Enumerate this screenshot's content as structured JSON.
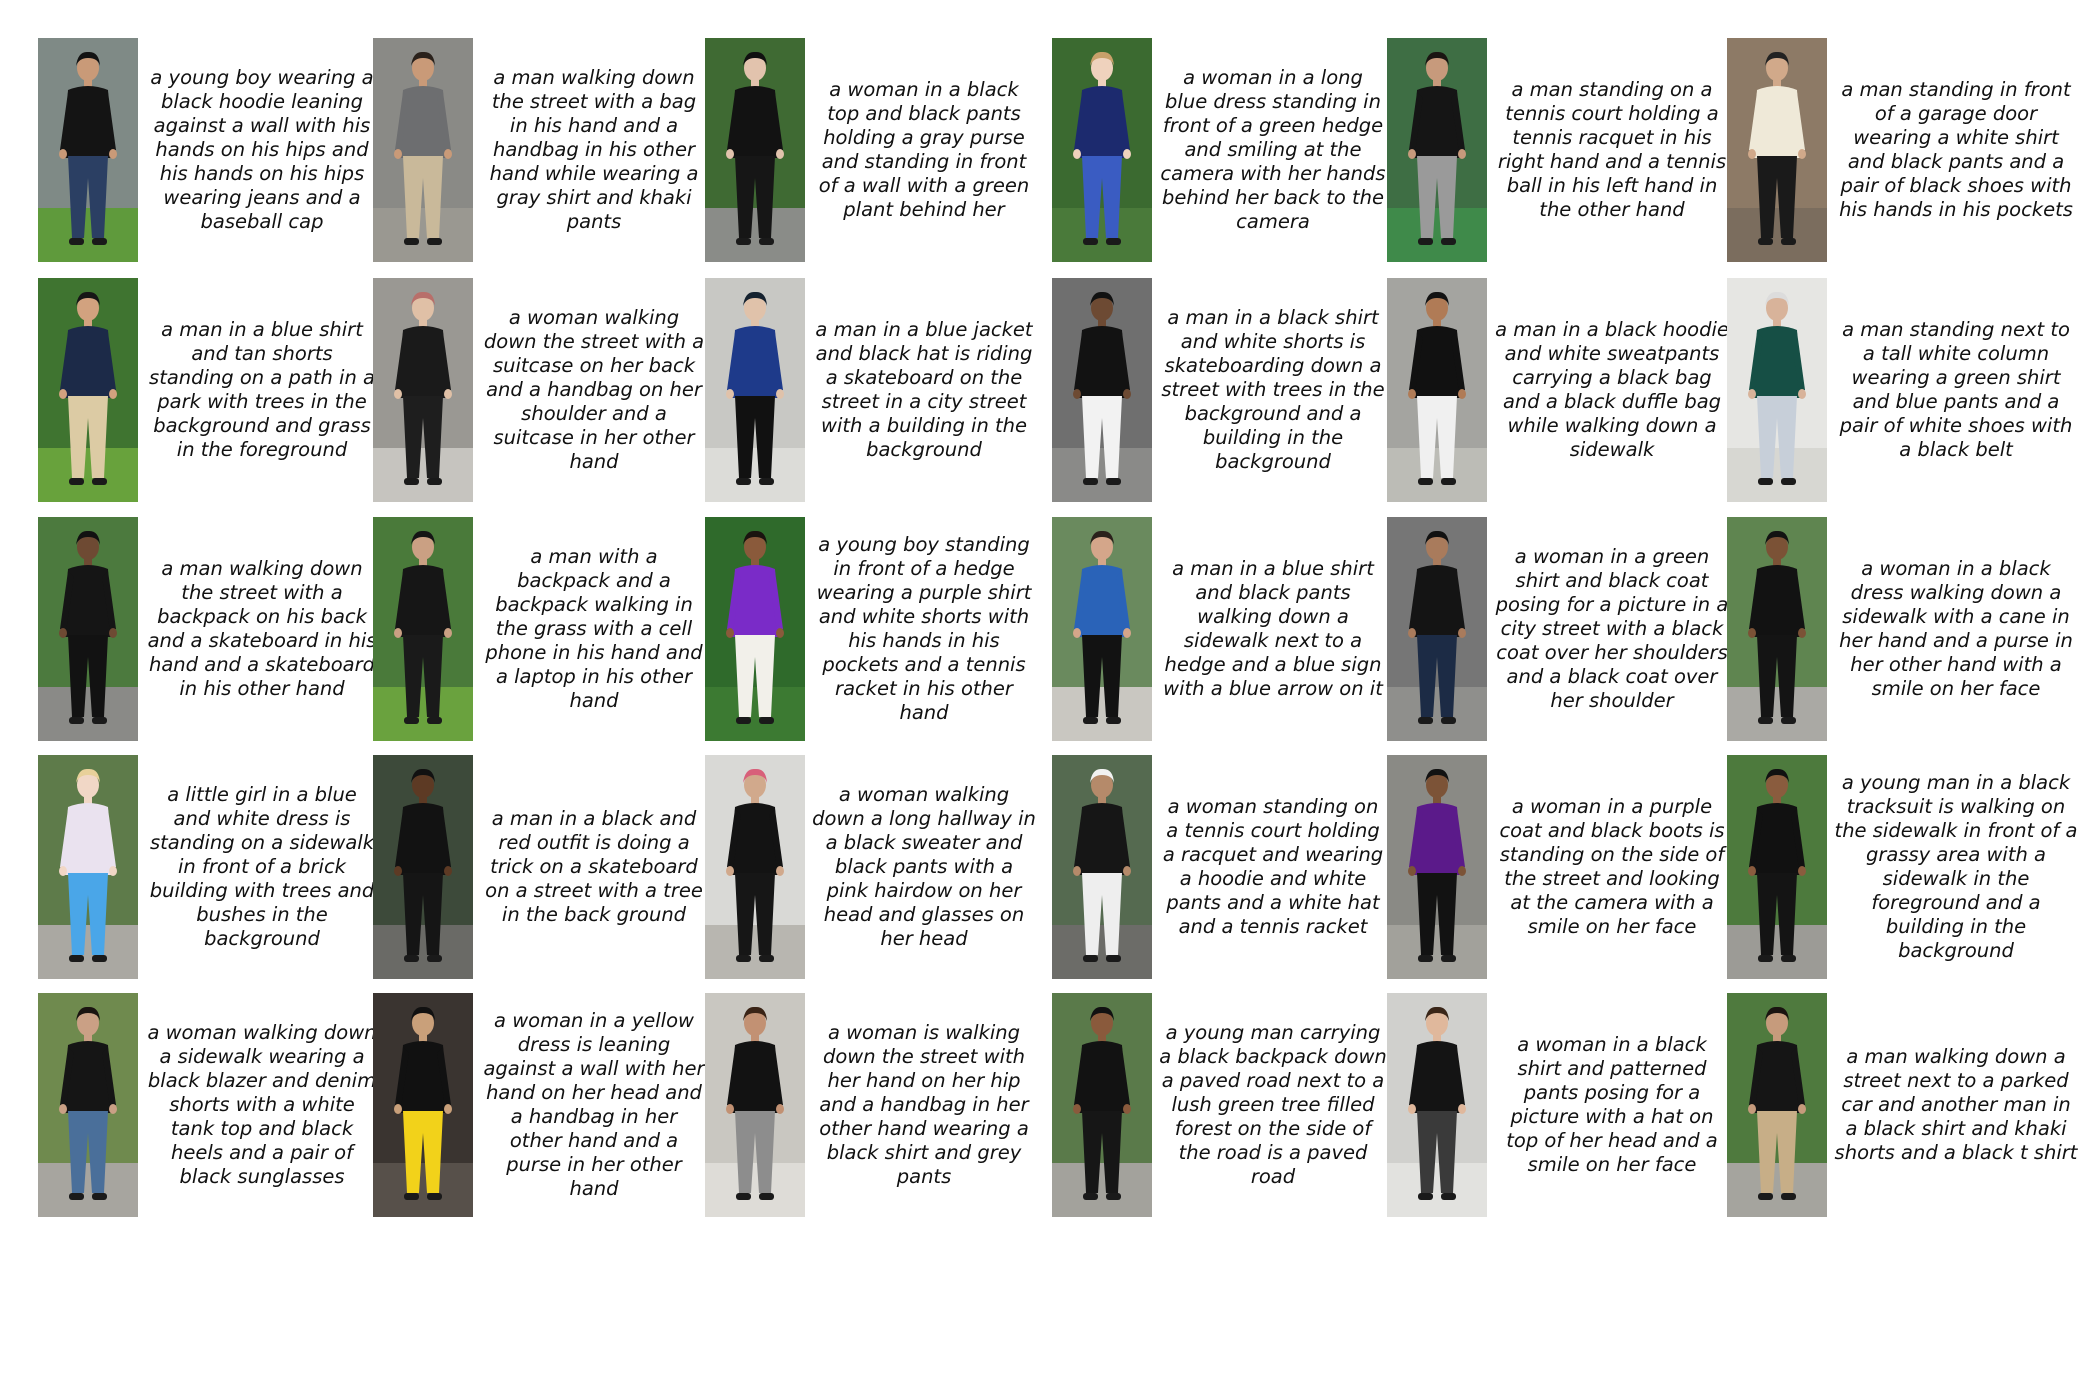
{
  "items": [
    {
      "caption": "a young boy wearing a black hoodie leaning against a wall with his hands on his hips and his hands on his hips wearing jeans and a baseball cap",
      "bg": "#7f8a86",
      "ground": "#5f9a3c",
      "top": "#141414",
      "bottom": "#2b3f63",
      "skin": "#c99a78",
      "hair": "#121212"
    },
    {
      "caption": "a man walking down the street with a bag in his hand and a handbag in his other hand while wearing a gray shirt and khaki pants",
      "bg": "#8a8a86",
      "ground": "#9a9891",
      "top": "#6d6e70",
      "bottom": "#c9b99a",
      "skin": "#c99a78",
      "hair": "#2a211b"
    },
    {
      "caption": "a woman in a black top and black pants holding a gray purse and standing in front of a wall with a green plant behind her",
      "bg": "#3f6a33",
      "ground": "#8a8c88",
      "top": "#121212",
      "bottom": "#161616",
      "skin": "#e2c3ad",
      "hair": "#101010"
    },
    {
      "caption": "a woman in a long blue dress standing in front of a green hedge and smiling at the camera with her hands behind her back to the camera",
      "bg": "#3b6a30",
      "ground": "#4a7a3a",
      "top": "#1c2a6e",
      "bottom": "#3a5cc2",
      "skin": "#efd2bd",
      "hair": "#c8a06a"
    },
    {
      "caption": "a man standing on a tennis court holding a tennis racquet in his right hand and a tennis ball in his left hand in the other hand",
      "bg": "#3e6e44",
      "ground": "#3f8a4a",
      "top": "#151515",
      "bottom": "#9a9a9a",
      "skin": "#c79a7c",
      "hair": "#1a1512"
    },
    {
      "caption": "a man standing in front of a garage door wearing a white shirt and black pants and a pair of black shoes with his hands in his pockets",
      "bg": "#8d7a66",
      "ground": "#7b6d5e",
      "top": "#efe9d8",
      "bottom": "#1a1a1a",
      "skin": "#d1a98a",
      "hair": "#222222"
    },
    {
      "caption": "a man in a blue shirt and tan shorts standing on a path in a park with trees in the background and grass in the foreground",
      "bg": "#3f7430",
      "ground": "#68a23c",
      "top": "#1c2a48",
      "bottom": "#dccba4",
      "skin": "#d2a27f",
      "hair": "#161616"
    },
    {
      "caption": "a woman walking down the street with a suitcase on her back and a handbag on her shoulder and a suitcase in her other hand",
      "bg": "#9a9893",
      "ground": "#c6c4bf",
      "top": "#1a1a1a",
      "bottom": "#1e1e1e",
      "skin": "#e0c0a6",
      "hair": "#b86f6a"
    },
    {
      "caption": "a man in a blue jacket and black hat is riding a skateboard on the street in a city street with a building in the background",
      "bg": "#c8c8c4",
      "ground": "#dcdcd8",
      "top": "#1e3a8a",
      "bottom": "#111111",
      "skin": "#e0c2aa",
      "hair": "#15222f"
    },
    {
      "caption": "a man in a black shirt and white shorts is skateboarding down a street with trees in the background and a building in the background",
      "bg": "#6f6f6f",
      "ground": "#8a8a88",
      "top": "#121212",
      "bottom": "#f2f2f2",
      "skin": "#6d4a33",
      "hair": "#111111"
    },
    {
      "caption": "a man in a black hoodie and white sweatpants carrying a black bag and a black duffle bag while walking down a sidewalk",
      "bg": "#a4a4a0",
      "ground": "#bcbcb6",
      "top": "#111111",
      "bottom": "#f0f0f0",
      "skin": "#b07b56",
      "hair": "#121212"
    },
    {
      "caption": "a man standing next to a tall white column wearing a green shirt and blue pants and a pair of white shoes with a black belt",
      "bg": "#e6e6e3",
      "ground": "#d7d7d2",
      "top": "#164f45",
      "bottom": "#c7cfd9",
      "skin": "#d8b39a",
      "hair": "#dcdcdc"
    },
    {
      "caption": "a man walking down the street with a backpack on his back and a skateboard in his hand and a skateboard in his other hand",
      "bg": "#4c7a3e",
      "ground": "#8a8a87",
      "top": "#151515",
      "bottom": "#121212",
      "skin": "#6e4a33",
      "hair": "#111111"
    },
    {
      "caption": "a man with a backpack and a backpack walking in the grass with a cell phone in his hand and a laptop in his other hand",
      "bg": "#4a7a3a",
      "ground": "#6aa23e",
      "top": "#161616",
      "bottom": "#1a1a1a",
      "skin": "#caa083",
      "hair": "#151515"
    },
    {
      "caption": "a young boy standing in front of a hedge wearing a purple shirt and white shorts with his hands in his pockets and a tennis racket in his other hand",
      "bg": "#2f6a2b",
      "ground": "#3c7a32",
      "top": "#7a2bc8",
      "bottom": "#f2f0ea",
      "skin": "#8a5a3b",
      "hair": "#1a130f"
    },
    {
      "caption": "a man in a blue shirt and black pants walking down a sidewalk next to a hedge and a blue sign with a blue arrow on it",
      "bg": "#6a8a5e",
      "ground": "#c9c7c1",
      "top": "#2a63b8",
      "bottom": "#121212",
      "skin": "#d4a68a",
      "hair": "#2a211b"
    },
    {
      "caption": "a woman in a green shirt and black coat posing for a picture in a city street with a black coat over her shoulders and a black coat over her shoulder",
      "bg": "#767676",
      "ground": "#8f8f8c",
      "top": "#141414",
      "bottom": "#1c2b45",
      "skin": "#a97b5c",
      "hair": "#111111"
    },
    {
      "caption": "a woman in a black dress walking down a sidewalk with a cane in her hand and a purse in her other hand with a smile on her face",
      "bg": "#5f8550",
      "ground": "#aaa9a4",
      "top": "#121212",
      "bottom": "#141414",
      "skin": "#7b5236",
      "hair": "#121212"
    },
    {
      "caption": "a little girl in a blue and white dress is standing on a sidewalk in front of a brick building with trees and bushes in the background",
      "bg": "#5e7b4a",
      "ground": "#aaa8a2",
      "top": "#eae2ef",
      "bottom": "#4aa6e8",
      "skin": "#f1d7c6",
      "hair": "#e8d09a"
    },
    {
      "caption": "a man in a black and red outfit is doing a trick on a skateboard on a street with a tree in the back ground",
      "bg": "#3d4a3a",
      "ground": "#6a6a66",
      "top": "#121212",
      "bottom": "#151515",
      "skin": "#5d3a24",
      "hair": "#111111"
    },
    {
      "caption": "a woman walking down a long hallway in a black sweater and black pants with a pink hairdow on her head and glasses on her head",
      "bg": "#d9d9d6",
      "ground": "#b8b6b0",
      "top": "#131313",
      "bottom": "#161616",
      "skin": "#d1a98c",
      "hair": "#d8607a"
    },
    {
      "caption": "a woman standing on a tennis court holding a racquet and wearing a hoodie and white pants and a white hat and a tennis racket",
      "bg": "#556a50",
      "ground": "#6c6c68",
      "top": "#161616",
      "bottom": "#eeeeee",
      "skin": "#b58a6a",
      "hair": "#f2f2f2"
    },
    {
      "caption": "a woman in a purple coat and black boots is standing on the side of the street and looking at the camera with a smile on her face",
      "bg": "#8a8a85",
      "ground": "#a2a19b",
      "top": "#5b1a8a",
      "bottom": "#121212",
      "skin": "#7c5337",
      "hair": "#121212"
    },
    {
      "caption": "a young man in a black tracksuit is walking on the sidewalk in front of a grassy area with a sidewalk in the foreground and a building in the background",
      "bg": "#4d7a3d",
      "ground": "#9c9b96",
      "top": "#111111",
      "bottom": "#141414",
      "skin": "#8a5c3e",
      "hair": "#111111"
    },
    {
      "caption": "a woman walking down a sidewalk wearing a black blazer and denim shorts with a white tank top and black heels and a pair of black sunglasses",
      "bg": "#6f8a4e",
      "ground": "#a7a59f",
      "top": "#151515",
      "bottom": "#4a6f9a",
      "skin": "#caa085",
      "hair": "#1a1410"
    },
    {
      "caption": "a woman in a yellow dress is leaning against a wall with her hand on her head and a handbag in her other hand and a purse in her other hand",
      "bg": "#3a3430",
      "ground": "#57504a",
      "top": "#111111",
      "bottom": "#f2d21a",
      "skin": "#c9a07a",
      "hair": "#111111"
    },
    {
      "caption": "a woman is walking down the street with her hand on her hip and a handbag in her other hand wearing a black shirt and grey pants",
      "bg": "#c9c7c1",
      "ground": "#dedcd7",
      "top": "#121212",
      "bottom": "#8d8d8d",
      "skin": "#c29173",
      "hair": "#3a2416"
    },
    {
      "caption": "a young man carrying a black backpack down a paved road next to a lush green tree filled forest on the side of the road is a paved road",
      "bg": "#5a7a4a",
      "ground": "#a3a29c",
      "top": "#121212",
      "bottom": "#161616",
      "skin": "#8a5a3c",
      "hair": "#111111"
    },
    {
      "caption": "a woman in a black shirt and patterned pants posing for a picture with a hat on top of her head and a smile on her face",
      "bg": "#d0d0cd",
      "ground": "#e2e2df",
      "top": "#141414",
      "bottom": "#3a3a3a",
      "skin": "#e0b89c",
      "hair": "#3a2618"
    },
    {
      "caption": "a man walking down a street next to a parked car and another man in a black shirt and khaki shorts and a black t shirt",
      "bg": "#4f7a3e",
      "ground": "#a5a49e",
      "top": "#151515",
      "bottom": "#c7ae87",
      "skin": "#c69b7c",
      "hair": "#1a1410"
    }
  ]
}
